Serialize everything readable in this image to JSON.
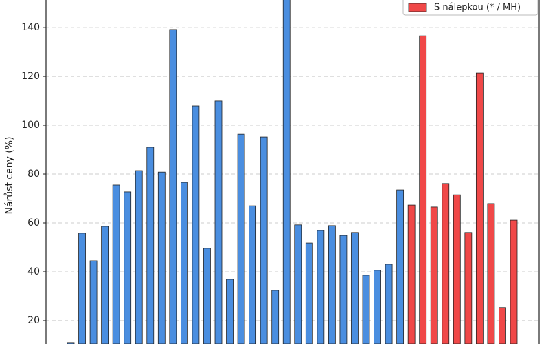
{
  "chart_data": {
    "type": "bar",
    "y_label": "Nárůst ceny (%)",
    "categories": [
      null,
      null,
      null,
      null,
      null,
      null,
      null,
      null,
      null,
      null,
      null,
      null,
      null,
      null,
      null,
      null,
      null,
      null,
      null,
      null,
      null,
      null,
      null,
      null,
      null,
      null,
      null,
      null,
      null,
      null,
      null,
      null,
      null,
      null,
      null,
      null,
      null,
      null,
      null,
      null
    ],
    "series": [
      {
        "color": "#4a8ee0",
        "values": [
          11.0,
          55.8,
          44.5,
          58.6,
          75.5,
          72.7,
          81.4,
          91.0,
          80.8,
          139.2,
          76.6,
          107.9,
          49.6,
          109.9,
          36.9,
          96.3,
          67.0,
          95.2,
          32.4,
          153,
          59.2,
          51.8,
          56.9,
          58.9,
          54.9,
          56.1,
          38.6,
          40.6,
          43.1,
          73.5,
          null,
          null,
          null,
          null,
          null,
          null,
          null,
          null,
          null,
          null
        ]
      },
      {
        "name": "S nálepkou (* / MH)",
        "color": "#f04848",
        "values": [
          null,
          null,
          null,
          null,
          null,
          null,
          null,
          null,
          null,
          null,
          null,
          null,
          null,
          null,
          null,
          null,
          null,
          null,
          null,
          null,
          null,
          null,
          null,
          null,
          null,
          null,
          null,
          null,
          null,
          null,
          67.3,
          136.6,
          66.5,
          76.1,
          71.5,
          56.1,
          121.4,
          67.9,
          25.4,
          61.1
        ]
      }
    ],
    "ylim": [
      10.4,
      151.3
    ],
    "yticks": [
      20,
      40,
      60,
      80,
      100,
      120,
      140
    ],
    "grid": true,
    "legend": "upper right"
  }
}
